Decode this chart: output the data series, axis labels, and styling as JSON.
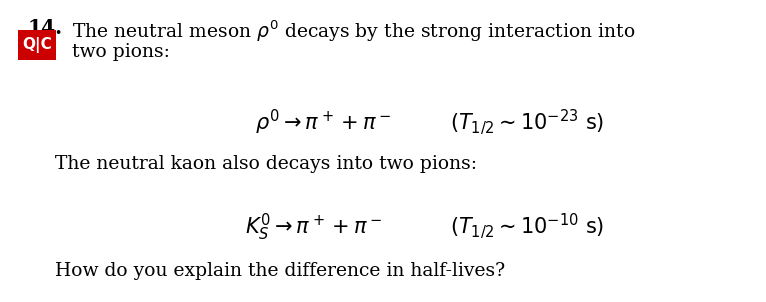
{
  "background_color": "#ffffff",
  "fig_width": 7.66,
  "fig_height": 3.02,
  "number_text": "14.",
  "qc_box_color": "#cc0000",
  "qc_text_color": "#ffffff",
  "line1_text": "The neutral meson $\\rho^0$ decays by the strong interaction into",
  "line2_text": "two pions:",
  "middle_text": "The neutral kaon also decays into two pions:",
  "bottom_text": "How do you explain the difference in half-lives?",
  "font_size_main": 13.5,
  "font_size_eq": 15,
  "font_size_number": 14.5
}
